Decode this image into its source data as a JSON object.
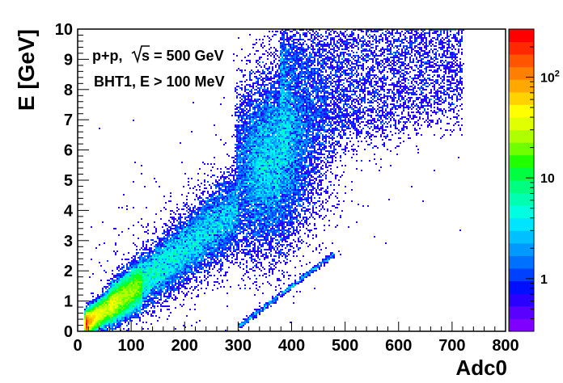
{
  "chart_data": {
    "type": "heatmap",
    "title": "",
    "xlabel": "Adc0",
    "ylabel": "E [GeV]",
    "xlim": [
      0,
      800
    ],
    "ylim": [
      0,
      10
    ],
    "x_ticks": [
      "0",
      "100",
      "200",
      "300",
      "400",
      "500",
      "600",
      "700",
      "800"
    ],
    "y_ticks": [
      "0",
      "1",
      "2",
      "3",
      "4",
      "5",
      "6",
      "7",
      "8",
      "9",
      "10"
    ],
    "annotations": [
      "p+p,",
      "s = 500 GeV",
      "BHT1, E > 100 MeV"
    ],
    "color_scale": {
      "log": true,
      "zlim": [
        0.3,
        300
      ],
      "ticks": [
        {
          "value": 1,
          "base": "1",
          "exp": ""
        },
        {
          "value": 10,
          "base": "10",
          "exp": ""
        },
        {
          "value": 100,
          "base": "10",
          "exp": "2"
        }
      ],
      "palette": [
        "#7f00ff",
        "#5a00ff",
        "#2a00ff",
        "#0010ff",
        "#0040ff",
        "#0070ff",
        "#0099ff",
        "#00c0ff",
        "#00e5ff",
        "#00ffe0",
        "#00ffb0",
        "#00ff80",
        "#00ff40",
        "#20ff00",
        "#70ff00",
        "#b0ff00",
        "#e0ff00",
        "#ffff00",
        "#ffd200",
        "#ffa800",
        "#ff7f00",
        "#ff5400",
        "#ff2800",
        "#ff0000"
      ]
    },
    "density_regions": [
      {
        "name": "low-energy band core",
        "x_from": 15,
        "x_to": 120,
        "y_per_adc": 0.0125,
        "width_gev": 0.25,
        "peak_count": 250
      },
      {
        "name": "linear band",
        "x_from": 60,
        "x_to": 300,
        "y_per_adc": 0.0135,
        "width_gev": 0.45,
        "peak_count": 4
      },
      {
        "name": "saturation blob",
        "x_center": 360,
        "y_center": 5.6,
        "x_sigma": 45,
        "y_sigma": 1.4,
        "peak_count": 5
      },
      {
        "name": "high-energy tail",
        "x_from": 380,
        "x_to": 720,
        "y_from": 6.5,
        "y_to": 10,
        "peak_count": 1
      }
    ],
    "grid": false,
    "legend": "none"
  }
}
